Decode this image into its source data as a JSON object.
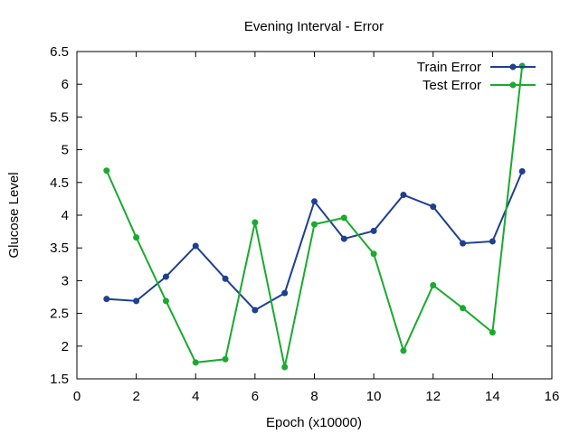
{
  "chart_data": {
    "type": "line",
    "title": "Evening Interval - Error",
    "xlabel": "Epoch (x10000)",
    "ylabel": "Glucose Level",
    "xlim": [
      0,
      16
    ],
    "ylim": [
      1.5,
      6.5
    ],
    "xticks": [
      "0",
      "2",
      "4",
      "6",
      "8",
      "10",
      "12",
      "14",
      "16"
    ],
    "yticks": [
      "1.5",
      "2",
      "2.5",
      "3",
      "3.5",
      "4",
      "4.5",
      "5",
      "5.5",
      "6",
      "6.5"
    ],
    "grid": false,
    "legend_position": "top-right",
    "x": [
      1,
      2,
      3,
      4,
      5,
      6,
      7,
      8,
      9,
      10,
      11,
      12,
      13,
      14,
      15
    ],
    "series": [
      {
        "name": "Train Error",
        "color": "#1f3f8f",
        "values": [
          2.72,
          2.69,
          3.06,
          3.53,
          3.03,
          2.55,
          2.81,
          4.21,
          3.64,
          3.76,
          4.31,
          4.13,
          3.57,
          3.6,
          4.67
        ]
      },
      {
        "name": "Test Error",
        "color": "#1aaa2e",
        "values": [
          4.68,
          3.66,
          2.69,
          1.75,
          1.8,
          3.89,
          1.68,
          3.86,
          3.96,
          3.41,
          1.93,
          2.93,
          2.58,
          2.21,
          6.28
        ]
      }
    ]
  }
}
